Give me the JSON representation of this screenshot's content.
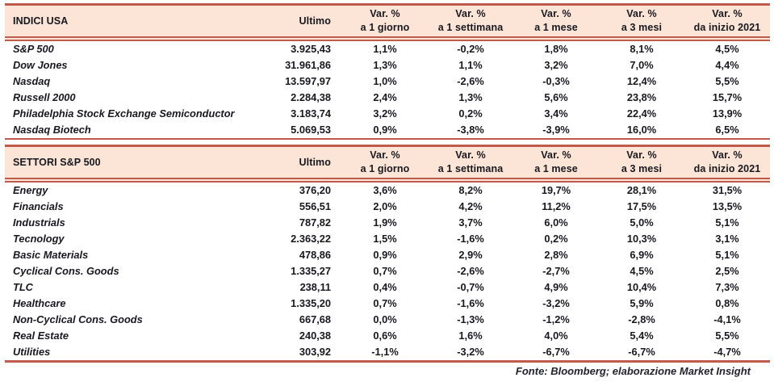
{
  "colors": {
    "accent_border": "#bf5b4d",
    "header_background": "#fce4d6",
    "text": "#18181f",
    "page_background": "#ffffff"
  },
  "labels": {
    "ultimo": "Ultimo",
    "var_pct": "Var. %",
    "periods": [
      "a 1 giorno",
      "a 1 settimana",
      "a 1 mese",
      "a 3 mesi",
      "da inizio 2021"
    ]
  },
  "tables": [
    {
      "title": "INDICI USA",
      "rows": [
        {
          "name": "S&P 500",
          "ultimo": "3.925,43",
          "vars": [
            "1,1%",
            "-0,2%",
            "1,8%",
            "8,1%",
            "4,5%"
          ]
        },
        {
          "name": "Dow Jones",
          "ultimo": "31.961,86",
          "vars": [
            "1,3%",
            "1,1%",
            "3,2%",
            "7,0%",
            "4,4%"
          ]
        },
        {
          "name": "Nasdaq",
          "ultimo": "13.597,97",
          "vars": [
            "1,0%",
            "-2,6%",
            "-0,3%",
            "12,4%",
            "5,5%"
          ]
        },
        {
          "name": "Russell 2000",
          "ultimo": "2.284,38",
          "vars": [
            "2,4%",
            "1,3%",
            "5,6%",
            "23,8%",
            "15,7%"
          ]
        },
        {
          "name": "Philadelphia Stock Exchange Semiconductor",
          "ultimo": "3.183,74",
          "vars": [
            "3,2%",
            "0,2%",
            "3,4%",
            "22,4%",
            "13,9%"
          ]
        },
        {
          "name": "Nasdaq Biotech",
          "ultimo": "5.069,53",
          "vars": [
            "0,9%",
            "-3,8%",
            "-3,9%",
            "16,0%",
            "6,5%"
          ]
        }
      ]
    },
    {
      "title": "SETTORI S&P 500",
      "rows": [
        {
          "name": "Energy",
          "ultimo": "376,20",
          "vars": [
            "3,6%",
            "8,2%",
            "19,7%",
            "28,1%",
            "31,5%"
          ]
        },
        {
          "name": "Financials",
          "ultimo": "556,51",
          "vars": [
            "2,0%",
            "4,2%",
            "11,2%",
            "17,5%",
            "13,5%"
          ]
        },
        {
          "name": "Industrials",
          "ultimo": "787,82",
          "vars": [
            "1,9%",
            "3,7%",
            "6,0%",
            "5,0%",
            "5,1%"
          ]
        },
        {
          "name": "Tecnology",
          "ultimo": "2.363,22",
          "vars": [
            "1,5%",
            "-1,6%",
            "0,2%",
            "10,3%",
            "3,1%"
          ]
        },
        {
          "name": "Basic Materials",
          "ultimo": "478,86",
          "vars": [
            "0,9%",
            "2,9%",
            "2,8%",
            "6,9%",
            "5,1%"
          ]
        },
        {
          "name": "Cyclical Cons. Goods",
          "ultimo": "1.335,27",
          "vars": [
            "0,7%",
            "-2,6%",
            "-2,7%",
            "4,5%",
            "2,5%"
          ]
        },
        {
          "name": "TLC",
          "ultimo": "238,11",
          "vars": [
            "0,4%",
            "-0,7%",
            "4,9%",
            "10,4%",
            "7,3%"
          ]
        },
        {
          "name": "Healthcare",
          "ultimo": "1.335,20",
          "vars": [
            "0,7%",
            "-1,6%",
            "-3,2%",
            "5,9%",
            "0,8%"
          ]
        },
        {
          "name": "Non-Cyclical Cons. Goods",
          "ultimo": "667,68",
          "vars": [
            "0,0%",
            "-1,3%",
            "-1,2%",
            "-2,8%",
            "-4,1%"
          ]
        },
        {
          "name": "Real Estate",
          "ultimo": "240,38",
          "vars": [
            "0,6%",
            "1,6%",
            "4,0%",
            "5,4%",
            "5,5%"
          ]
        },
        {
          "name": "Utilities",
          "ultimo": "303,92",
          "vars": [
            "-1,1%",
            "-3,2%",
            "-6,7%",
            "-6,7%",
            "-4,7%"
          ]
        }
      ]
    }
  ],
  "footer": {
    "source": "Fonte: Bloomberg; elaborazione Market Insight"
  }
}
